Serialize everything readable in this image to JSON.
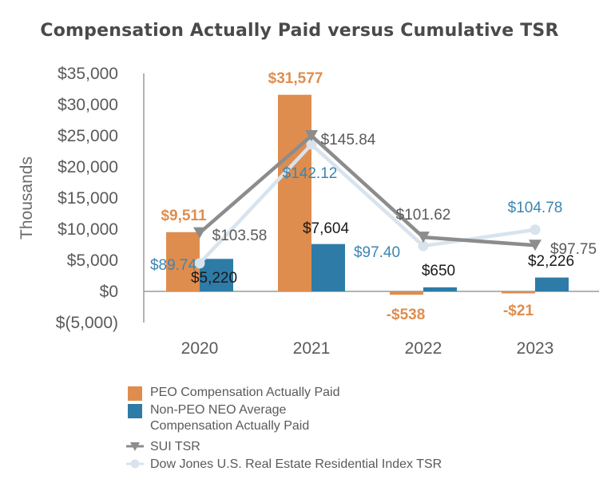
{
  "title": "Compensation Actually Paid versus Cumulative TSR",
  "chart_data": {
    "type": "bar",
    "title": "Compensation Actually Paid versus Cumulative TSR",
    "ylabel": "Thousands",
    "ylim": [
      -5000,
      35000
    ],
    "yticks": [
      35000,
      30000,
      25000,
      20000,
      15000,
      10000,
      5000,
      0,
      -5000
    ],
    "ytick_labels": [
      "$35,000",
      "$30,000",
      "$25,000",
      "$20,000",
      "$15,000",
      "$10,000",
      "$5,000",
      "$0",
      "$(5,000)"
    ],
    "categories": [
      "2020",
      "2021",
      "2022",
      "2023"
    ],
    "series": [
      {
        "name": "PEO Compensation Actually Paid",
        "kind": "bar",
        "color": "#df8d4f",
        "values": [
          9511,
          31577,
          -538,
          -21
        ],
        "labels": [
          "$9,511",
          "$31,577",
          "-$538",
          "-$21"
        ],
        "label_color": "#df8d4f"
      },
      {
        "name": "Non-PEO NEO Average Compensation Actually Paid",
        "kind": "bar",
        "color": "#2e7ba7",
        "values": [
          5220,
          7604,
          650,
          2226
        ],
        "labels": [
          "$5,220",
          "$7,604",
          "$650",
          "$2,226"
        ],
        "label_color": "#1a1a1a"
      },
      {
        "name": "SUI TSR",
        "kind": "line",
        "color": "#8c8c8c",
        "marker": "triangle-down",
        "tsr": [
          103.58,
          145.84,
          101.62,
          97.75
        ],
        "plot_values": [
          9400,
          25000,
          8700,
          7400
        ],
        "labels": [
          "$103.58",
          "$145.84",
          "$101.62",
          "$97.75"
        ],
        "label_color": "#5a5a5a"
      },
      {
        "name": "Dow Jones U.S. Real Estate Residential Index TSR",
        "kind": "line",
        "color": "#d8e3ed",
        "marker": "circle",
        "tsr": [
          89.74,
          142.12,
          97.4,
          104.78
        ],
        "plot_values": [
          4500,
          23600,
          7300,
          9900
        ],
        "labels": [
          "$89.74",
          "$142.12",
          "$97.40",
          "$104.78"
        ],
        "label_color": "#3b86b0"
      }
    ]
  },
  "legend": [
    {
      "label": "PEO Compensation Actually Paid",
      "symbol": "box",
      "color": "#df8d4f"
    },
    {
      "label": "Non-PEO NEO Average Compensation Actually Paid",
      "symbol": "box",
      "color": "#2e7ba7"
    },
    {
      "label": "SUI TSR",
      "symbol": "triangle-line",
      "color": "#8c8c8c"
    },
    {
      "label": "Dow Jones U.S. Real Estate Residential Index TSR",
      "symbol": "circle-line",
      "color": "#d8e3ed"
    }
  ]
}
